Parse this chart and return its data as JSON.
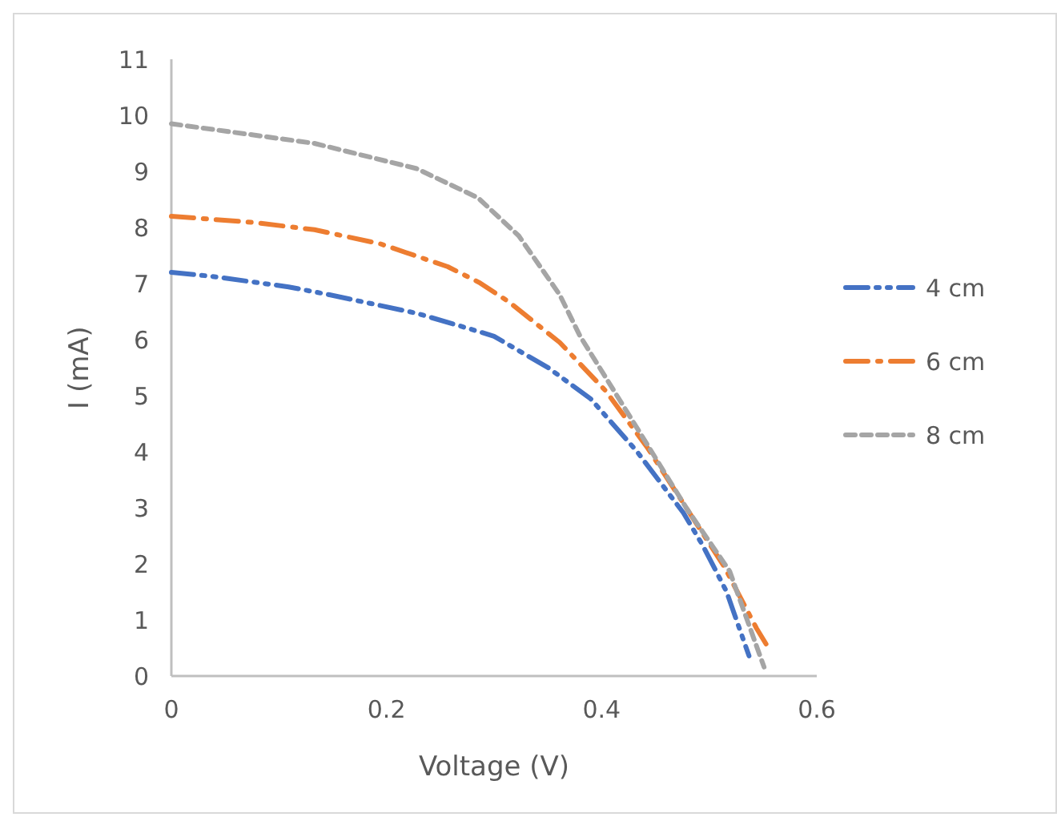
{
  "chart_data": {
    "type": "line",
    "xlabel": "Voltage (V)",
    "ylabel": "I (mA)",
    "xlim": [
      0,
      0.6
    ],
    "xticks": [
      0,
      {
        "value": 0.2,
        "label": "0.2"
      },
      {
        "value": 0.4,
        "label": "0.4"
      },
      {
        "value": 0.6,
        "label": "0.6"
      }
    ],
    "ylim": [
      0,
      11
    ],
    "yticks": [
      0,
      1,
      2,
      3,
      4,
      5,
      6,
      7,
      8,
      9,
      10,
      11
    ],
    "grid": false,
    "legend": "right",
    "marker": "none",
    "line_style": "dashed",
    "series": [
      {
        "name": "4 cm",
        "color": "#4472c4",
        "x": [
          0,
          0.037,
          0.109,
          0.147,
          0.228,
          0.276,
          0.3,
          0.351,
          0.39,
          0.433,
          0.476,
          0.494,
          0.516,
          0.537
        ],
        "values": [
          7.2,
          7.13,
          6.94,
          6.8,
          6.47,
          6.2,
          6.06,
          5.49,
          4.94,
          4.0,
          2.91,
          2.33,
          1.51,
          0.36
        ]
      },
      {
        "name": "6 cm",
        "color": "#ed7d31",
        "x": [
          0,
          0.076,
          0.133,
          0.194,
          0.257,
          0.286,
          0.314,
          0.361,
          0.404,
          0.443,
          0.48,
          0.514,
          0.544,
          0.557
        ],
        "values": [
          8.2,
          8.09,
          7.96,
          7.71,
          7.3,
          7.02,
          6.67,
          5.95,
          5.08,
          4.06,
          2.96,
          1.95,
          0.85,
          0.44
        ]
      },
      {
        "name": "8 cm",
        "color": "#a5a5a5",
        "x": [
          0,
          0.133,
          0.228,
          0.285,
          0.323,
          0.361,
          0.38,
          0.433,
          0.48,
          0.519,
          0.551
        ],
        "values": [
          9.85,
          9.5,
          9.05,
          8.53,
          7.85,
          6.8,
          6.06,
          4.42,
          2.96,
          1.87,
          0.16
        ]
      }
    ]
  }
}
